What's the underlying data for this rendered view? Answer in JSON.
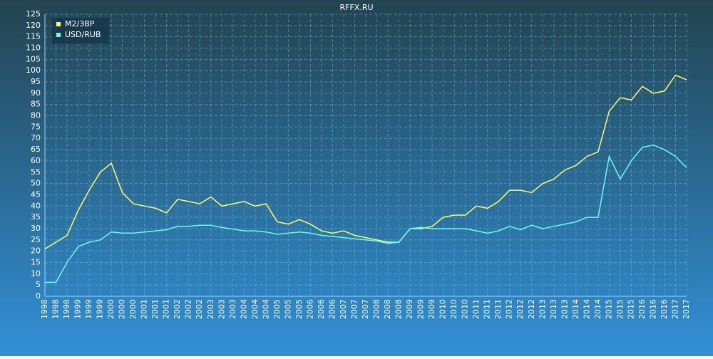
{
  "chart_data": {
    "type": "line",
    "title": "RFFX.RU",
    "categories": [
      "1998",
      "1998",
      "1998",
      "1999",
      "1999",
      "1999",
      "2000",
      "2000",
      "2000",
      "2001",
      "2001",
      "2001",
      "2002",
      "2002",
      "2002",
      "2003",
      "2003",
      "2003",
      "2004",
      "2004",
      "2004",
      "2005",
      "2005",
      "2005",
      "2006",
      "2006",
      "2006",
      "2007",
      "2007",
      "2007",
      "2008",
      "2008",
      "2008",
      "2009",
      "2009",
      "2009",
      "2010",
      "2010",
      "2010",
      "2011",
      "2011",
      "2011",
      "2012",
      "2012",
      "2012",
      "2013",
      "2013",
      "2013",
      "2014",
      "2014",
      "2014",
      "2015",
      "2015",
      "2015",
      "2016",
      "2016",
      "2016",
      "2017",
      "2017"
    ],
    "series": [
      {
        "name": "M2/ЗВР",
        "color": "#ffff66",
        "values": [
          21,
          24,
          27,
          38,
          47,
          55,
          59,
          46,
          41,
          40,
          39,
          37,
          43,
          42,
          41,
          44,
          40,
          41,
          42,
          40,
          41,
          33,
          32,
          34,
          32,
          29,
          28,
          29,
          27,
          26,
          25,
          24,
          24,
          30,
          30,
          31,
          35,
          36,
          36,
          40,
          39,
          42,
          47,
          47,
          46,
          50,
          52,
          56,
          58,
          62,
          64,
          82,
          88,
          87,
          93,
          90,
          91,
          98,
          96
        ]
      },
      {
        "name": "USD/RUB",
        "color": "#66ffee",
        "values": [
          6.2,
          6.2,
          15,
          22,
          24,
          25,
          28.5,
          28,
          28,
          28.5,
          29,
          29.5,
          31,
          31,
          31.5,
          31.5,
          30.5,
          29.8,
          29,
          29,
          28.5,
          27.5,
          28,
          28.5,
          28,
          27,
          26.5,
          26,
          25.5,
          25,
          24.5,
          23.5,
          24,
          30,
          30.5,
          30,
          30,
          30,
          30,
          29,
          28,
          29,
          31,
          29.5,
          31.5,
          30,
          31,
          32,
          33,
          35,
          35,
          62,
          52,
          60,
          66,
          67,
          65,
          62,
          57
        ]
      }
    ],
    "ylim": [
      0,
      125
    ],
    "yticks": [
      0,
      5,
      10,
      15,
      20,
      25,
      30,
      35,
      40,
      45,
      50,
      55,
      60,
      65,
      70,
      75,
      80,
      85,
      90,
      95,
      100,
      105,
      110,
      115,
      120,
      125
    ],
    "grid": true,
    "legend": "top-left"
  }
}
